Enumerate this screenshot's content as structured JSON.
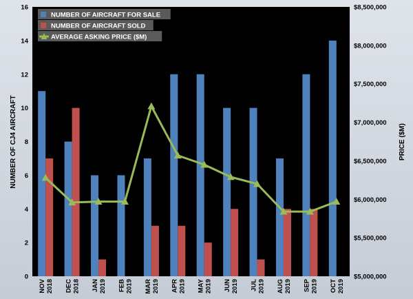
{
  "chart_data": {
    "type": "bar",
    "categories": [
      [
        "NOV",
        "2018"
      ],
      [
        "DEC",
        "2018"
      ],
      [
        "JAN",
        "2019"
      ],
      [
        "FEB",
        "2019"
      ],
      [
        "MAR",
        "2019"
      ],
      [
        "APR",
        "2019"
      ],
      [
        "MAY",
        "2019"
      ],
      [
        "JUN",
        "2019"
      ],
      [
        "JUL",
        "2019"
      ],
      [
        "AUG",
        "2019"
      ],
      [
        "SEP",
        "2019"
      ],
      [
        "OCT",
        "2019"
      ]
    ],
    "series": [
      {
        "name": "NUMBER OF AIRCRAFT FOR SALE",
        "kind": "bar",
        "axis": "left",
        "color": "#4f81bd",
        "values": [
          11,
          8,
          6,
          6,
          7,
          12,
          12,
          10,
          10,
          7,
          12,
          14
        ]
      },
      {
        "name": "NUMBER OF AIRCRAFT SOLD",
        "kind": "bar",
        "axis": "left",
        "color": "#c0504d",
        "values": [
          7,
          10,
          1,
          0,
          3,
          3,
          2,
          4,
          1,
          4,
          4,
          0
        ]
      },
      {
        "name": "AVERAGE ASKING PRICE ($M)",
        "kind": "line",
        "axis": "right",
        "color": "#9bbb59",
        "marker": "triangle",
        "values": [
          6280000,
          5960000,
          5970000,
          5970000,
          7210000,
          6570000,
          6450000,
          6290000,
          6200000,
          5840000,
          5840000,
          5970000
        ]
      }
    ],
    "ylabel": "NUMBER OF CJ4 AIRCRAFT",
    "y2label": "PRICE ($M)",
    "ylim": [
      0,
      16
    ],
    "yticks": [
      "0",
      "2",
      "4",
      "6",
      "8",
      "10",
      "12",
      "14",
      "16"
    ],
    "y2lim": [
      5000000,
      8500000
    ],
    "y2ticks": [
      "$5,000,000",
      "$5,500,000",
      "$6,000,000",
      "$6,500,000",
      "$7,000,000",
      "$7,500,000",
      "$8,000,000",
      "$8,500,000"
    ],
    "legend_position": "top-left",
    "plot_background": "#000000",
    "grid": false
  }
}
